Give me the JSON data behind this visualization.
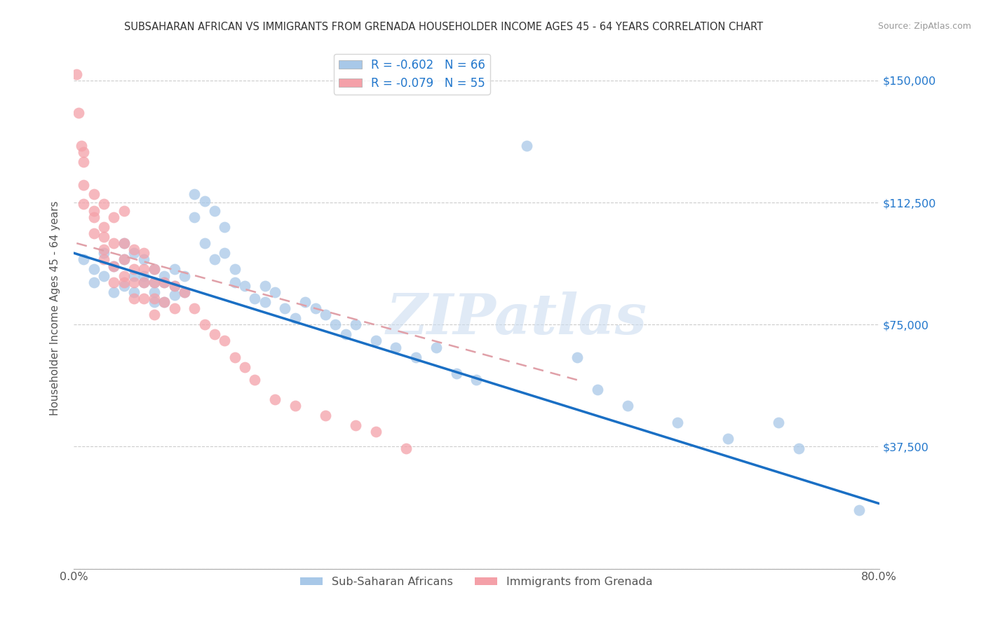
{
  "title": "SUBSAHARAN AFRICAN VS IMMIGRANTS FROM GRENADA HOUSEHOLDER INCOME AGES 45 - 64 YEARS CORRELATION CHART",
  "source": "Source: ZipAtlas.com",
  "ylabel": "Householder Income Ages 45 - 64 years",
  "xlim": [
    0.0,
    0.8
  ],
  "ylim": [
    0,
    160000
  ],
  "yticks": [
    0,
    37500,
    75000,
    112500,
    150000
  ],
  "xticks": [
    0.0,
    0.1,
    0.2,
    0.3,
    0.4,
    0.5,
    0.6,
    0.7,
    0.8
  ],
  "legend_r1": "R = -0.602",
  "legend_n1": "N = 66",
  "legend_r2": "R = -0.079",
  "legend_n2": "N = 55",
  "color_blue": "#a8c8e8",
  "color_pink": "#f4a0a8",
  "color_blue_line": "#1a6fc4",
  "color_pink_line": "#e0a0a8",
  "watermark_text": "ZIPatlas",
  "label_blue": "Sub-Saharan Africans",
  "label_pink": "Immigrants from Grenada",
  "blue_scatter_x": [
    0.01,
    0.02,
    0.02,
    0.03,
    0.03,
    0.04,
    0.04,
    0.05,
    0.05,
    0.05,
    0.06,
    0.06,
    0.06,
    0.07,
    0.07,
    0.07,
    0.08,
    0.08,
    0.08,
    0.08,
    0.09,
    0.09,
    0.09,
    0.1,
    0.1,
    0.1,
    0.11,
    0.11,
    0.12,
    0.12,
    0.13,
    0.13,
    0.14,
    0.14,
    0.15,
    0.15,
    0.16,
    0.16,
    0.17,
    0.18,
    0.19,
    0.19,
    0.2,
    0.21,
    0.22,
    0.23,
    0.24,
    0.25,
    0.26,
    0.27,
    0.28,
    0.3,
    0.32,
    0.34,
    0.36,
    0.38,
    0.4,
    0.45,
    0.5,
    0.52,
    0.55,
    0.6,
    0.65,
    0.7,
    0.72,
    0.78
  ],
  "blue_scatter_y": [
    95000,
    92000,
    88000,
    97000,
    90000,
    93000,
    85000,
    100000,
    95000,
    87000,
    97000,
    90000,
    85000,
    95000,
    90000,
    88000,
    92000,
    88000,
    85000,
    82000,
    90000,
    88000,
    82000,
    92000,
    87000,
    84000,
    90000,
    85000,
    115000,
    108000,
    113000,
    100000,
    110000,
    95000,
    105000,
    97000,
    92000,
    88000,
    87000,
    83000,
    87000,
    82000,
    85000,
    80000,
    77000,
    82000,
    80000,
    78000,
    75000,
    72000,
    75000,
    70000,
    68000,
    65000,
    68000,
    60000,
    58000,
    130000,
    65000,
    55000,
    50000,
    45000,
    40000,
    45000,
    37000,
    18000
  ],
  "pink_scatter_x": [
    0.003,
    0.005,
    0.008,
    0.01,
    0.01,
    0.01,
    0.01,
    0.02,
    0.02,
    0.02,
    0.02,
    0.03,
    0.03,
    0.03,
    0.03,
    0.03,
    0.04,
    0.04,
    0.04,
    0.04,
    0.05,
    0.05,
    0.05,
    0.05,
    0.05,
    0.06,
    0.06,
    0.06,
    0.06,
    0.07,
    0.07,
    0.07,
    0.07,
    0.08,
    0.08,
    0.08,
    0.08,
    0.09,
    0.09,
    0.1,
    0.1,
    0.11,
    0.12,
    0.13,
    0.14,
    0.15,
    0.16,
    0.17,
    0.18,
    0.2,
    0.22,
    0.25,
    0.28,
    0.3,
    0.33
  ],
  "pink_scatter_y": [
    152000,
    140000,
    130000,
    125000,
    118000,
    112000,
    128000,
    115000,
    108000,
    103000,
    110000,
    112000,
    105000,
    98000,
    102000,
    95000,
    108000,
    100000,
    93000,
    88000,
    100000,
    95000,
    90000,
    88000,
    110000,
    98000,
    92000,
    88000,
    83000,
    97000,
    92000,
    88000,
    83000,
    92000,
    88000,
    83000,
    78000,
    88000,
    82000,
    87000,
    80000,
    85000,
    80000,
    75000,
    72000,
    70000,
    65000,
    62000,
    58000,
    52000,
    50000,
    47000,
    44000,
    42000,
    37000
  ],
  "blue_line_x": [
    0.0,
    0.8
  ],
  "blue_line_y": [
    97000,
    20000
  ],
  "pink_line_x": [
    0.003,
    0.5
  ],
  "pink_line_y": [
    100000,
    58000
  ]
}
